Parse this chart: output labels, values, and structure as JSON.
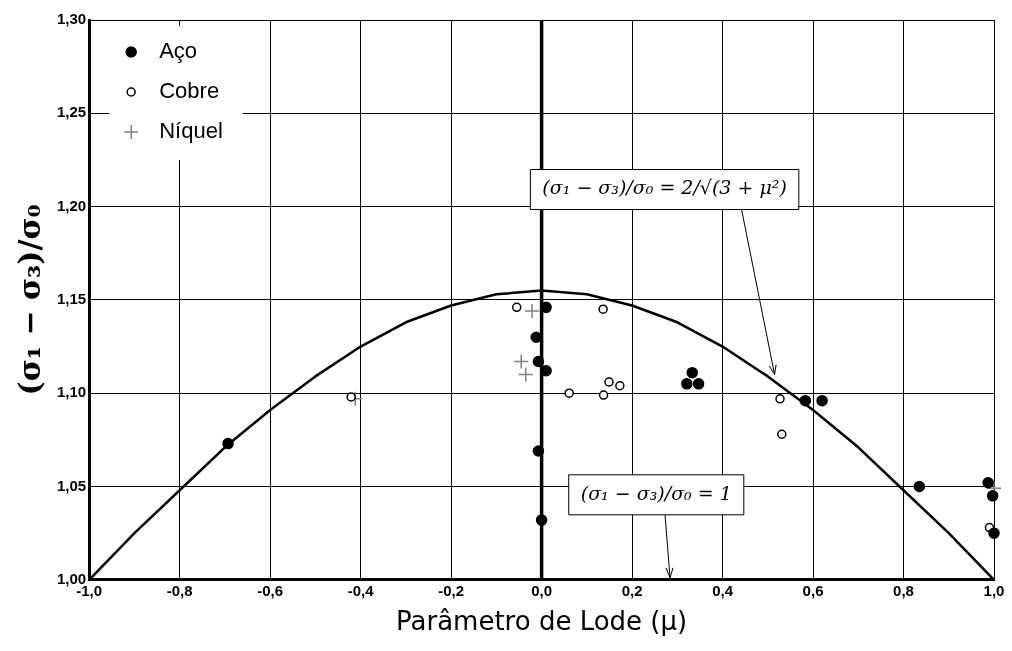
{
  "chart_data": {
    "type": "scatter",
    "xlabel": "Parâmetro de Lode (μ)",
    "ylabel": "(σ₁ − σ₃)/σ₀",
    "xlim": [
      -1,
      1
    ],
    "ylim": [
      1,
      1.3
    ],
    "xticks": [
      {
        "value": -1,
        "label": "-1,0"
      },
      {
        "value": -0.8,
        "label": "-0,8"
      },
      {
        "value": -0.6,
        "label": "-0,6"
      },
      {
        "value": -0.4,
        "label": "-0,4"
      },
      {
        "value": -0.2,
        "label": "-0,2"
      },
      {
        "value": 0,
        "label": "0,0"
      },
      {
        "value": 0.2,
        "label": "0,2"
      },
      {
        "value": 0.4,
        "label": "0,4"
      },
      {
        "value": 0.6,
        "label": "0,6"
      },
      {
        "value": 0.8,
        "label": "0,8"
      },
      {
        "value": 1,
        "label": "1,0"
      }
    ],
    "yticks": [
      {
        "value": 1,
        "label": "1,00"
      },
      {
        "value": 1.05,
        "label": "1,05"
      },
      {
        "value": 1.1,
        "label": "1,10"
      },
      {
        "value": 1.15,
        "label": "1,15"
      },
      {
        "value": 1.2,
        "label": "1,20"
      },
      {
        "value": 1.25,
        "label": "1,25"
      },
      {
        "value": 1.3,
        "label": "1,30"
      }
    ],
    "grid": true,
    "legend": "top left",
    "series": [
      {
        "name": "Aço",
        "color": "#000000",
        "marker": "circle",
        "x": [
          -0.693,
          0.01,
          -0.012,
          -0.007,
          0.01,
          -0.007,
          0.0,
          0.333,
          0.321,
          0.347,
          0.583,
          0.62,
          0.835,
          0.987,
          0.997,
          1.0
        ],
        "values": [
          1.073,
          1.146,
          1.13,
          1.117,
          1.112,
          1.069,
          1.032,
          1.111,
          1.105,
          1.105,
          1.096,
          1.096,
          1.05,
          1.052,
          1.045,
          1.025
        ]
      },
      {
        "name": "Cobre",
        "color": "#000000",
        "marker": "circle-open",
        "x": [
          -0.421,
          -0.055,
          0.136,
          0.061,
          0.137,
          0.149,
          0.173,
          0.527,
          0.531,
          0.99
        ],
        "values": [
          1.098,
          1.146,
          1.145,
          1.1,
          1.099,
          1.106,
          1.104,
          1.097,
          1.078,
          1.028
        ]
      },
      {
        "name": "Níquel",
        "color": "#808080",
        "marker": "cross",
        "x": [
          -0.412,
          -0.021,
          -0.045,
          -0.035,
          1.0
        ],
        "values": [
          1.097,
          1.144,
          1.117,
          1.11,
          1.049
        ]
      },
      {
        "type": "line",
        "color": "#000000",
        "marker": "none",
        "x": [
          -1,
          -0.9,
          -0.8,
          -0.7,
          -0.6,
          -0.5,
          -0.4,
          -0.3,
          -0.2,
          -0.1,
          0,
          0.1,
          0.2,
          0.3,
          0.4,
          0.5,
          0.6,
          0.7,
          0.8,
          0.9,
          1
        ],
        "values": [
          1.0,
          1.025,
          1.048,
          1.071,
          1.091,
          1.109,
          1.125,
          1.138,
          1.147,
          1.153,
          1.155,
          1.153,
          1.147,
          1.138,
          1.125,
          1.109,
          1.091,
          1.071,
          1.048,
          1.025,
          1.0
        ]
      }
    ],
    "ref_lines": [
      {
        "axis": "x",
        "value": 0,
        "color": "#000000"
      }
    ],
    "annotations": [
      {
        "text": "(σ₁ − σ₃)/σ₀ = 2/√(3 + μ²)",
        "x": 0.515,
        "y": 1.11
      },
      "(σ₁ − σ₃)/σ₀ = 1"
    ]
  }
}
